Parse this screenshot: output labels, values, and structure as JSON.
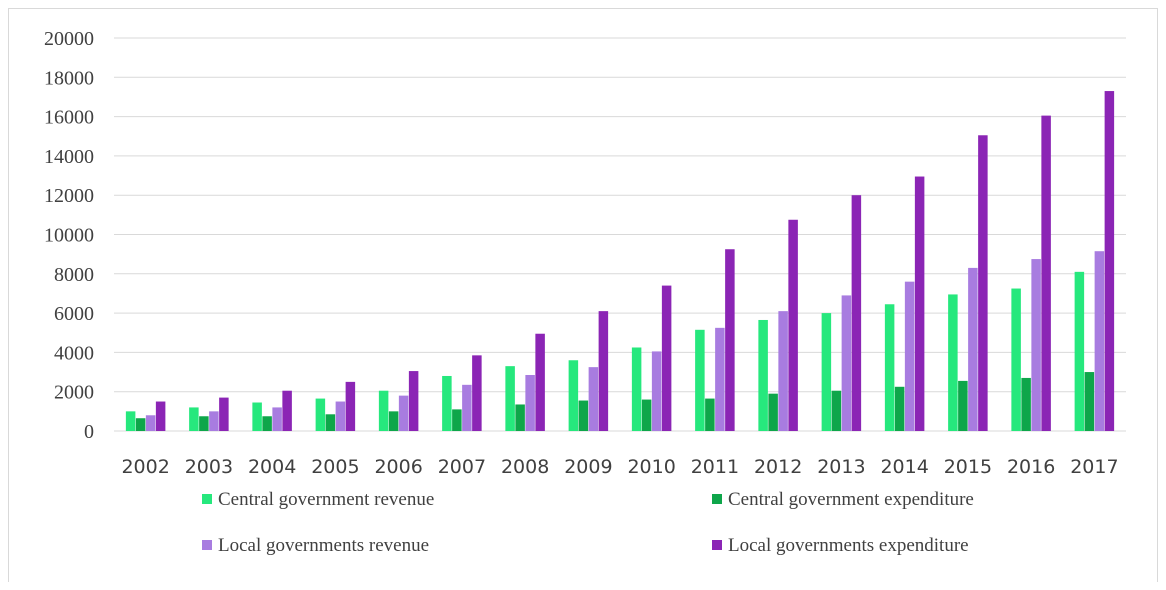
{
  "chart_data": {
    "type": "bar",
    "categories": [
      "2002",
      "2003",
      "2004",
      "2005",
      "2006",
      "2007",
      "2008",
      "2009",
      "2010",
      "2011",
      "2012",
      "2013",
      "2014",
      "2015",
      "2016",
      "2017"
    ],
    "ylim": [
      0,
      20000
    ],
    "yticks": [
      0,
      2000,
      4000,
      6000,
      8000,
      10000,
      12000,
      14000,
      16000,
      18000,
      20000
    ],
    "grid": true,
    "legend_position": "bottom",
    "series": [
      {
        "name": "Central government revenue",
        "color": "#26e87d",
        "values": [
          1000,
          1200,
          1450,
          1650,
          2050,
          2800,
          3300,
          3600,
          4250,
          5150,
          5650,
          6000,
          6450,
          6950,
          7250,
          8100
        ]
      },
      {
        "name": "Central government expenditure",
        "color": "#0ea64a",
        "values": [
          650,
          750,
          750,
          850,
          1000,
          1100,
          1350,
          1550,
          1600,
          1650,
          1900,
          2050,
          2250,
          2550,
          2700,
          3000
        ]
      },
      {
        "name": "Local governments revenue",
        "color": "#a87ce0",
        "values": [
          800,
          1000,
          1200,
          1500,
          1800,
          2350,
          2850,
          3250,
          4050,
          5250,
          6100,
          6900,
          7600,
          8300,
          8750,
          9150
        ]
      },
      {
        "name": "Local governments expenditure",
        "color": "#8b25b5",
        "values": [
          1500,
          1700,
          2050,
          2500,
          3050,
          3850,
          4950,
          6100,
          7400,
          9250,
          10750,
          12000,
          12950,
          15050,
          16050,
          17300
        ]
      }
    ]
  }
}
